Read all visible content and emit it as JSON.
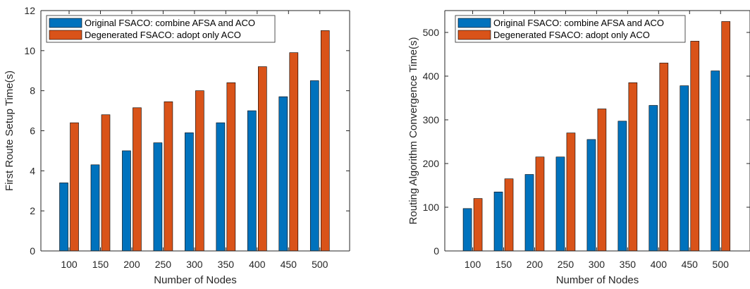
{
  "colors": {
    "original": "#0072BD",
    "degenerated": "#D95319",
    "axis": "#262626"
  },
  "chart_data": [
    {
      "type": "bar",
      "title": "",
      "xlabel": "Number of Nodes",
      "ylabel": "First Route Setup Time(s)",
      "categories": [
        "100",
        "150",
        "200",
        "250",
        "300",
        "350",
        "400",
        "450",
        "500"
      ],
      "ylim": [
        0,
        12
      ],
      "yticks": [
        0,
        2,
        4,
        6,
        8,
        10,
        12
      ],
      "grid": false,
      "legend_position": "top-left",
      "series": [
        {
          "name": "Original FSACO: combine AFSA and ACO",
          "values": [
            3.4,
            4.3,
            5.0,
            5.4,
            5.9,
            6.4,
            7.0,
            7.7,
            8.5
          ]
        },
        {
          "name": "Degenerated FSACO: adopt only ACO",
          "values": [
            6.4,
            6.8,
            7.15,
            7.45,
            8.0,
            8.4,
            9.2,
            9.9,
            11.0
          ]
        }
      ]
    },
    {
      "type": "bar",
      "title": "",
      "xlabel": "Number of Nodes",
      "ylabel": "Routing Algorithm Convergence Time(s)",
      "categories": [
        "100",
        "150",
        "200",
        "250",
        "300",
        "350",
        "400",
        "450",
        "500"
      ],
      "ylim": [
        0,
        550
      ],
      "yticks": [
        0,
        100,
        200,
        300,
        400,
        500
      ],
      "grid": false,
      "legend_position": "top-left",
      "series": [
        {
          "name": "Original FSACO: combine AFSA and ACO",
          "values": [
            97,
            135,
            175,
            215,
            255,
            297,
            333,
            378,
            412
          ]
        },
        {
          "name": "Degenerated FSACO: adopt only ACO",
          "values": [
            120,
            165,
            215,
            270,
            325,
            385,
            430,
            480,
            525
          ]
        }
      ]
    }
  ]
}
